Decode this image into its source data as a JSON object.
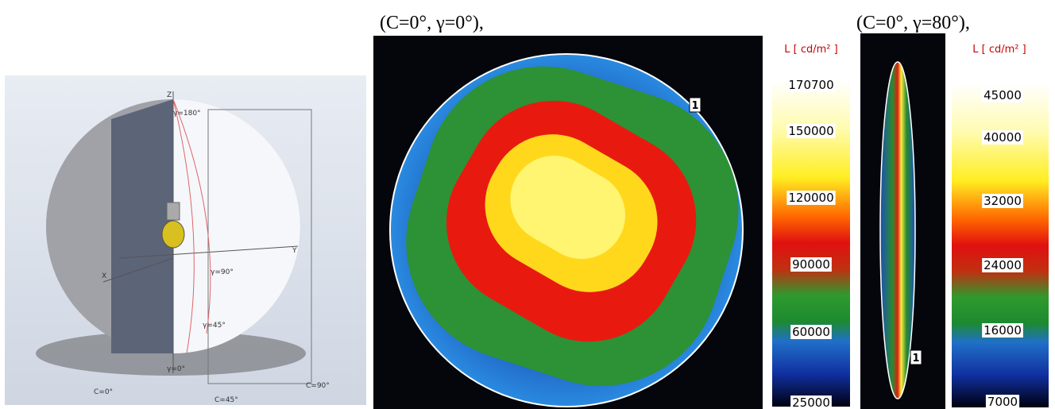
{
  "sphere": {
    "labels": {
      "z": "Z",
      "y": "Y",
      "x": "X",
      "g180": "γ=180°",
      "g90": "γ=90°",
      "g45": "γ=45°",
      "g0": "γ=0°",
      "c0": "C=0°",
      "c45": "C=45°",
      "c90": "C=90°"
    }
  },
  "panel1": {
    "caption": "(C=0°, γ=0°),",
    "marker": "1",
    "colorbar": {
      "title": "L [ cd/m² ]",
      "ticks": [
        "170700",
        "150000",
        "120000",
        "90000",
        "60000",
        "25000"
      ]
    }
  },
  "panel2": {
    "caption": "(C=0°, γ=80°),",
    "marker": "1",
    "colorbar": {
      "title": "L [ cd/m² ]",
      "ticks": [
        "45000",
        "40000",
        "32000",
        "24000",
        "16000",
        "7000"
      ]
    }
  }
}
